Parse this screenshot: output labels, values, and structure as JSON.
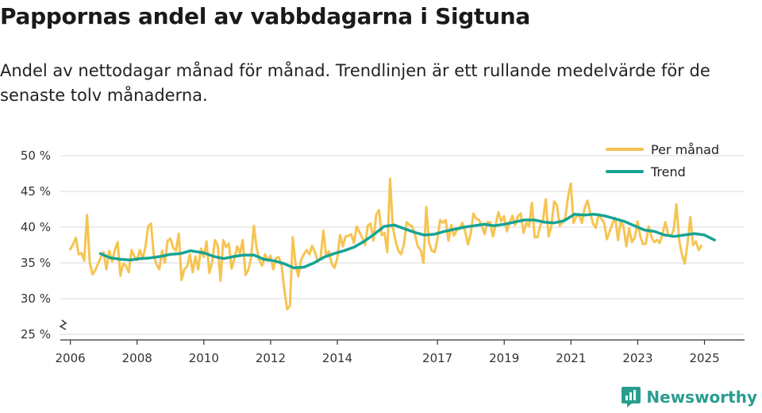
{
  "header": {
    "title": "Pappornas andel av vabbdagarna i Sigtuna",
    "subtitle": "Andel av nettodagar månad för månad. Trendlinjen är ett rullande medelvärde för de senaste tolv månaderna."
  },
  "brand": {
    "name": "Newsworthy",
    "icon": "newsworthy-logo-icon"
  },
  "colors": {
    "monthly": "#f6c451",
    "trend": "#16a394",
    "grid": "#d9d9d9",
    "axis": "#333333"
  },
  "chart_data": {
    "type": "line",
    "ylim": [
      25,
      50
    ],
    "xlim": [
      2005.7,
      2026.2
    ],
    "y_ticks": [
      25,
      30,
      35,
      40,
      45,
      50
    ],
    "y_tick_labels": [
      "25 %",
      "30 %",
      "35 %",
      "40 %",
      "45 %",
      "50 %"
    ],
    "x_ticks": [
      2006,
      2008,
      2010,
      2012,
      2014,
      2017,
      2019,
      2021,
      2023,
      2025
    ],
    "x_tick_labels": [
      "2006",
      "2008",
      "2010",
      "2012",
      "2014",
      "2017",
      "2019",
      "2021",
      "2023",
      "2025"
    ],
    "legend": {
      "position": "top-right",
      "entries": [
        "Per månad",
        "Trend"
      ]
    },
    "series": [
      {
        "name": "Per månad",
        "x_start": 2006.0,
        "x_step": 0.0833,
        "values": [
          36.9,
          37.6,
          38.5,
          36.2,
          36.4,
          35.3,
          41.7,
          35.0,
          33.4,
          34.0,
          34.9,
          35.8,
          36.5,
          34.1,
          36.7,
          35.2,
          36.8,
          37.9,
          33.2,
          34.9,
          34.6,
          33.7,
          36.8,
          35.9,
          35.4,
          36.8,
          35.6,
          37.2,
          40.1,
          40.5,
          36.1,
          34.8,
          34.1,
          36.7,
          35.0,
          38.1,
          38.4,
          37.1,
          36.7,
          39.1,
          32.6,
          34.1,
          34.5,
          36.2,
          33.7,
          35.9,
          34.1,
          37.0,
          35.8,
          38.0,
          33.6,
          35.1,
          38.2,
          37.4,
          32.5,
          38.2,
          37.2,
          37.7,
          34.2,
          35.6,
          37.3,
          36.3,
          38.2,
          33.3,
          34.0,
          35.7,
          40.2,
          37.1,
          35.4,
          34.6,
          36.2,
          35.3,
          36.0,
          34.1,
          35.7,
          35.8,
          34.6,
          31.2,
          28.5,
          29.0,
          38.6,
          34.9,
          33.1,
          35.4,
          36.2,
          36.8,
          36.2,
          37.4,
          36.5,
          35.2,
          35.7,
          39.5,
          36.0,
          36.6,
          34.9,
          34.3,
          35.6,
          38.9,
          37.3,
          38.7,
          38.8,
          39.0,
          37.8,
          40.1,
          39.3,
          38.5,
          37.5,
          40.2,
          40.5,
          38.1,
          41.7,
          42.4,
          38.9,
          39.2,
          36.5,
          46.8,
          40.0,
          38.0,
          36.7,
          36.2,
          37.6,
          40.7,
          40.3,
          40.1,
          38.9,
          37.3,
          36.8,
          35.0,
          42.8,
          37.8,
          36.7,
          36.5,
          38.2,
          41.0,
          40.6,
          41.0,
          38.1,
          40.3,
          38.8,
          39.6,
          39.8,
          40.6,
          39.4,
          37.6,
          39.1,
          41.9,
          41.2,
          41.0,
          40.2,
          39.0,
          40.7,
          40.7,
          38.7,
          40.4,
          42.1,
          40.8,
          41.5,
          39.4,
          40.6,
          41.6,
          40.3,
          41.5,
          41.9,
          39.2,
          40.6,
          40.1,
          43.4,
          38.6,
          38.6,
          40.2,
          41.0,
          43.9,
          38.7,
          40.1,
          43.6,
          43.1,
          40.2,
          40.7,
          41.3,
          44.2,
          46.1,
          40.6,
          41.5,
          41.7,
          40.6,
          42.7,
          43.7,
          42.0,
          40.5,
          39.9,
          41.8,
          41.2,
          40.6,
          38.3,
          39.4,
          40.5,
          41.3,
          38.2,
          40.9,
          40.0,
          37.3,
          39.8,
          37.9,
          38.5,
          40.8,
          38.7,
          37.6,
          37.7,
          40.1,
          38.6,
          37.9,
          38.2,
          37.8,
          39.1,
          40.7,
          39.0,
          38.7,
          39.6,
          43.2,
          38.1,
          36.2,
          34.9,
          37.7,
          41.4,
          37.5,
          38.0,
          36.8,
          37.4
        ]
      },
      {
        "name": "Trend",
        "x": [
          2006.9,
          2007.2,
          2007.5,
          2007.8,
          2008.1,
          2008.4,
          2008.7,
          2009.0,
          2009.3,
          2009.6,
          2010.0,
          2010.3,
          2010.6,
          2010.9,
          2011.2,
          2011.5,
          2011.8,
          2012.1,
          2012.4,
          2012.7,
          2013.0,
          2013.3,
          2013.6,
          2013.9,
          2014.2,
          2014.5,
          2014.8,
          2015.1,
          2015.4,
          2015.7,
          2016.0,
          2016.3,
          2016.6,
          2016.9,
          2017.2,
          2017.5,
          2017.8,
          2018.1,
          2018.4,
          2018.7,
          2019.0,
          2019.3,
          2019.6,
          2019.9,
          2020.2,
          2020.5,
          2020.8,
          2021.1,
          2021.4,
          2021.7,
          2022.0,
          2022.3,
          2022.6,
          2022.9,
          2023.2,
          2023.5,
          2023.8,
          2024.1,
          2024.4,
          2024.7,
          2025.0,
          2025.3
        ],
        "values": [
          36.3,
          35.7,
          35.5,
          35.4,
          35.6,
          35.7,
          35.9,
          36.2,
          36.3,
          36.7,
          36.4,
          35.9,
          35.6,
          35.9,
          36.1,
          36.1,
          35.5,
          35.3,
          34.9,
          34.3,
          34.4,
          35.0,
          35.8,
          36.3,
          36.7,
          37.2,
          38.0,
          39.0,
          40.1,
          40.3,
          39.8,
          39.3,
          38.9,
          39.0,
          39.4,
          39.7,
          40.0,
          40.2,
          40.4,
          40.2,
          40.4,
          40.7,
          41.0,
          41.0,
          40.7,
          40.6,
          40.9,
          41.8,
          41.7,
          41.8,
          41.6,
          41.2,
          40.8,
          40.2,
          39.6,
          39.4,
          38.9,
          38.7,
          38.9,
          39.1,
          38.9,
          38.2
        ]
      }
    ]
  }
}
